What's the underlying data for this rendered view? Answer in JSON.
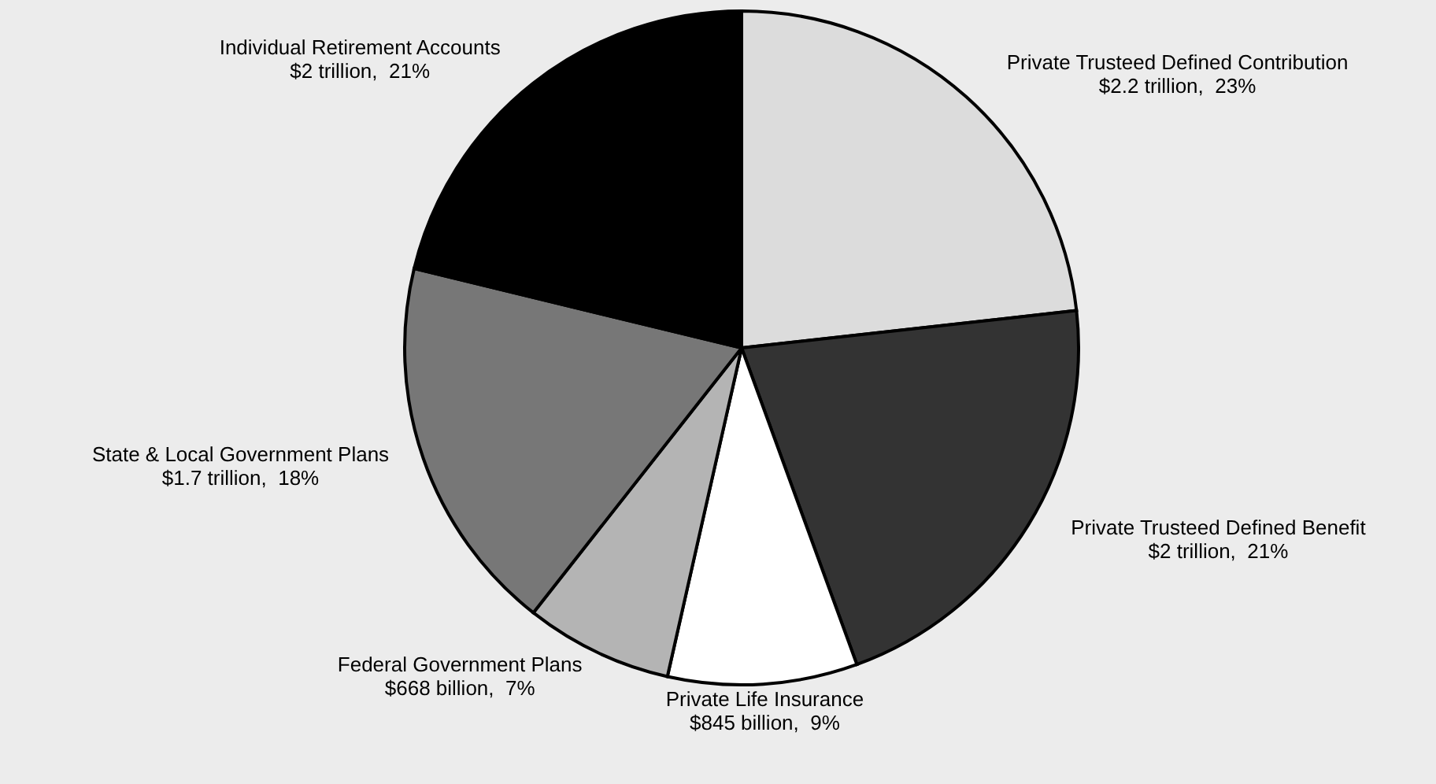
{
  "chart_data": {
    "type": "pie",
    "categories": [
      "Private Trusteed Defined Contribution",
      "Private Trusteed Defined Benefit",
      "Private Life Insurance",
      "Federal Government Plans",
      "State & Local Government Plans",
      "Individual Retirement Accounts"
    ],
    "values": [
      23,
      21,
      9,
      7,
      18,
      21
    ],
    "value_labels": [
      "$2.2 trillion,  23%",
      "$2 trillion,  21%",
      "$845 billion,  9%",
      "$668 billion,  7%",
      "$1.7 trillion,  18%",
      "$2 trillion,  21%"
    ],
    "colors": [
      "#dcdcdc",
      "#333333",
      "#ffffff",
      "#b4b4b4",
      "#777777",
      "#000000"
    ]
  }
}
